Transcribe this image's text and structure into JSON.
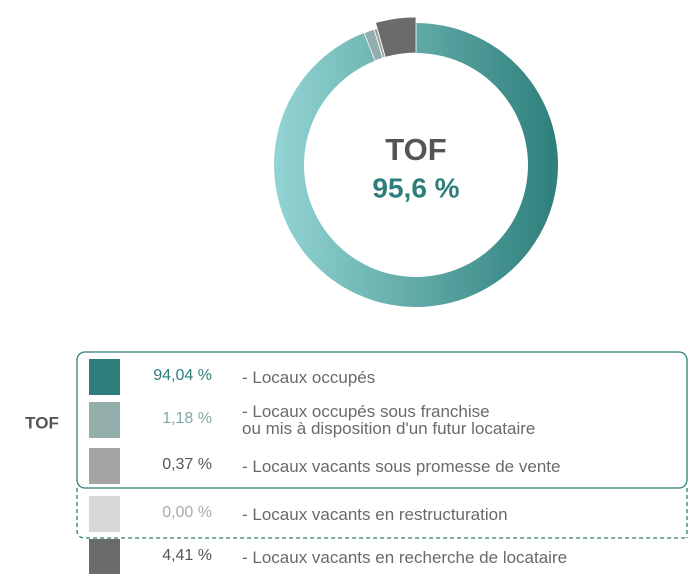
{
  "chart_data": {
    "type": "donut",
    "center_title": "TOF",
    "center_text": "95,6 %",
    "group_label": "TOF",
    "categories": [
      "- Locaux occupés",
      "- Locaux occupés sous franchise\nou mis à disposition d'un futur locataire",
      "- Locaux vacants sous promesse de vente",
      "- Locaux vacants en restructuration",
      "- Locaux vacants en recherche de locataire"
    ],
    "values": [
      94.04,
      1.18,
      0.37,
      0.0,
      4.41
    ],
    "value_labels": [
      "94,04 %",
      "1,18 %",
      "0,37 %",
      "0,00 %",
      "4,41 %"
    ],
    "colors": [
      "#2e7f7b",
      "#93aeab",
      "#a3a3a3",
      "#d8d8d8",
      "#6b6b6b"
    ]
  }
}
